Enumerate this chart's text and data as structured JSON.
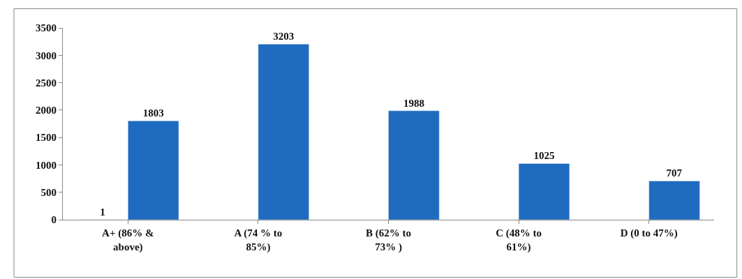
{
  "chart_data": {
    "type": "bar",
    "categories": [
      "A+ (86% & above)",
      "A (74 % to 85%)",
      "B (62% to 73% )",
      "C (48% to 61%)",
      "D (0 to 47%)"
    ],
    "series": [
      {
        "color": "#1f6bbf",
        "values": [
          1,
          null,
          null,
          null,
          null
        ]
      },
      {
        "color": "#1f6bbf",
        "values": [
          1803,
          3203,
          1988,
          1025,
          707
        ]
      }
    ],
    "ylim": [
      0,
      3500
    ],
    "yticks": [
      0,
      500,
      1000,
      1500,
      2000,
      2500,
      3000,
      3500
    ],
    "data_labels": true
  }
}
